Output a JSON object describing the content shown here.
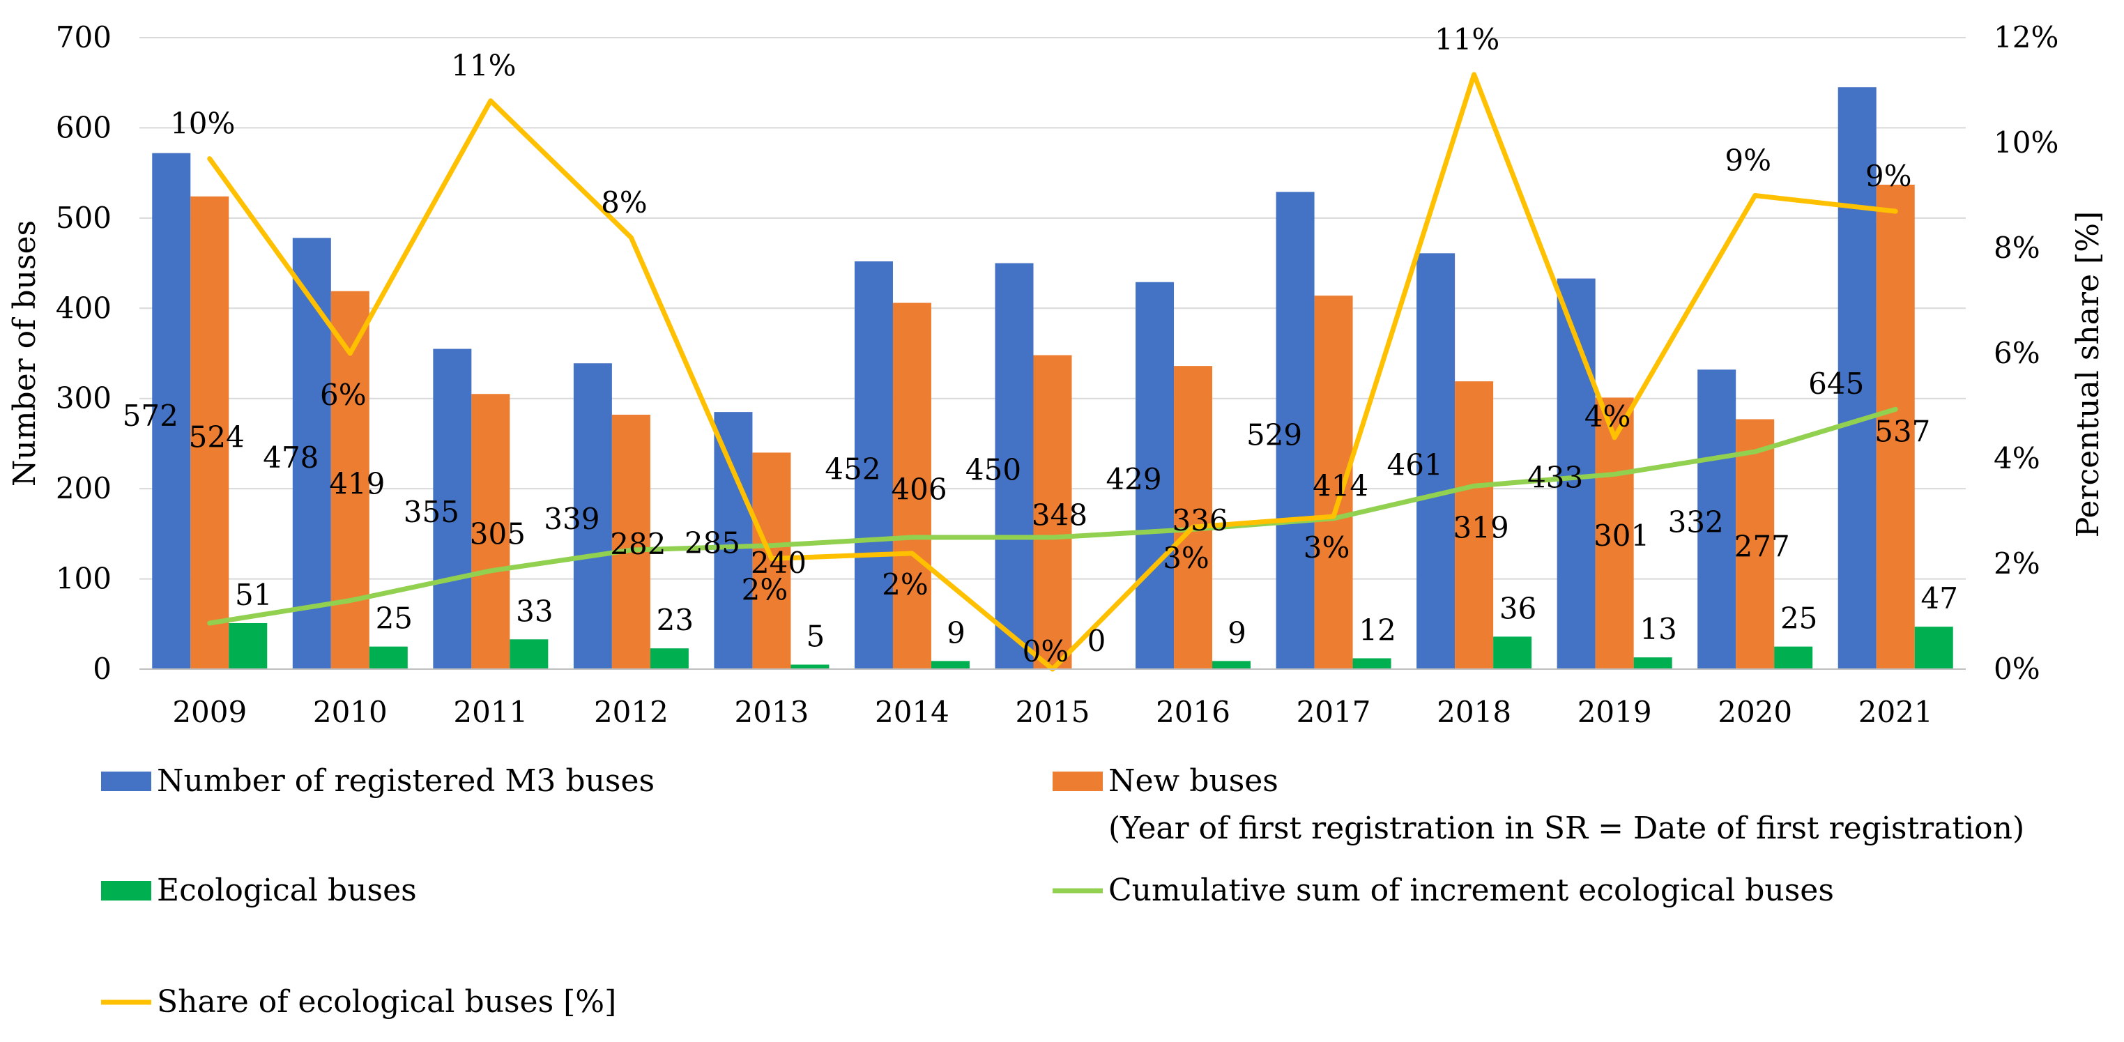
{
  "chart_data": {
    "type": "bar",
    "categories": [
      "2009",
      "2010",
      "2011",
      "2012",
      "2013",
      "2014",
      "2015",
      "2016",
      "2017",
      "2018",
      "2019",
      "2020",
      "2021"
    ],
    "ylabel": "Number of buses",
    "y2label": "Percentual share [%]",
    "ylim": [
      0,
      700
    ],
    "y2lim": [
      0,
      12
    ],
    "yticks": [
      "0",
      "100",
      "200",
      "300",
      "400",
      "500",
      "600",
      "700"
    ],
    "y2ticks": [
      "0%",
      "2%",
      "4%",
      "6%",
      "8%",
      "10%",
      "12%"
    ],
    "grid": true,
    "legend_position": "bottom",
    "series": [
      {
        "name": "Number of registered M3 buses",
        "kind": "bar",
        "axis": "left",
        "color": "#4472C4",
        "values": [
          572,
          478,
          355,
          339,
          285,
          452,
          450,
          429,
          529,
          461,
          433,
          332,
          645
        ],
        "labels": [
          "572",
          "478",
          "355",
          "339",
          "285",
          "452",
          "450",
          "429",
          "529",
          "461",
          "433",
          "332",
          "645"
        ]
      },
      {
        "name": "New buses",
        "name_line2": "(Year of first registration in SR = Date of first registration)",
        "kind": "bar",
        "axis": "left",
        "color": "#ED7D31",
        "values": [
          524,
          419,
          305,
          282,
          240,
          406,
          348,
          336,
          414,
          319,
          301,
          277,
          537
        ],
        "labels": [
          "524",
          "419",
          "305",
          "282",
          "240",
          "406",
          "348",
          "336",
          "414",
          "319",
          "301",
          "277",
          "537"
        ]
      },
      {
        "name": "Ecological buses",
        "kind": "bar",
        "axis": "left",
        "color": "#00B050",
        "values": [
          51,
          25,
          33,
          23,
          5,
          9,
          0,
          9,
          12,
          36,
          13,
          25,
          47
        ],
        "labels": [
          "51",
          "25",
          "33",
          "23",
          "5",
          "9",
          "0",
          "9",
          "12",
          "36",
          "13",
          "25",
          "47"
        ]
      },
      {
        "name": "Cumulative sum of increment ecological buses",
        "kind": "line",
        "axis": "left",
        "color": "#92D050",
        "values": [
          51,
          76,
          109,
          132,
          137,
          146,
          146,
          155,
          167,
          203,
          216,
          241,
          288
        ]
      },
      {
        "name": "Share of ecological buses [%]",
        "kind": "line",
        "axis": "right",
        "color": "#FFC000",
        "values": [
          9.7,
          6.0,
          10.8,
          8.2,
          2.1,
          2.2,
          0.0,
          2.7,
          2.9,
          11.3,
          4.4,
          9.0,
          8.7
        ],
        "labels": [
          "10%",
          "6%",
          "11%",
          "8%",
          "2%",
          "2%",
          "0%",
          "3%",
          "3%",
          "11%",
          "4%",
          "9%",
          "9%"
        ]
      }
    ]
  }
}
